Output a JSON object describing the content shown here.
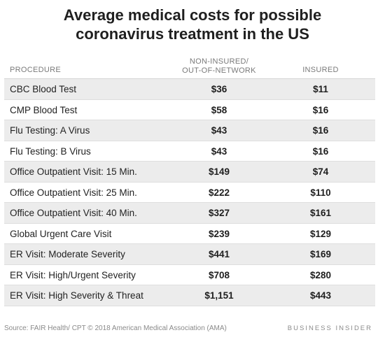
{
  "chart_data": {
    "type": "table",
    "title_lines": [
      "Average medical costs for possible",
      "coronavirus treatment in the US"
    ],
    "columns": {
      "procedure": "PROCEDURE",
      "non_insured_lines": [
        "NON-INSURED/",
        "OUT-OF-NETWORK"
      ],
      "insured": "INSURED"
    },
    "rows": [
      {
        "procedure": "CBC Blood Test",
        "non_insured": "$36",
        "insured": "$11"
      },
      {
        "procedure": "CMP Blood Test",
        "non_insured": "$58",
        "insured": "$16"
      },
      {
        "procedure": "Flu Testing: A Virus",
        "non_insured": "$43",
        "insured": "$16"
      },
      {
        "procedure": "Flu Testing: B Virus",
        "non_insured": "$43",
        "insured": "$16"
      },
      {
        "procedure": "Office Outpatient Visit: 15 Min.",
        "non_insured": "$149",
        "insured": "$74"
      },
      {
        "procedure": "Office Outpatient Visit: 25 Min.",
        "non_insured": "$222",
        "insured": "$110"
      },
      {
        "procedure": "Office Outpatient Visit: 40 Min.",
        "non_insured": "$327",
        "insured": "$161"
      },
      {
        "procedure": "Global Urgent Care Visit",
        "non_insured": "$239",
        "insured": "$129"
      },
      {
        "procedure": "ER Visit: Moderate Severity",
        "non_insured": "$441",
        "insured": "$169"
      },
      {
        "procedure": "ER Visit: High/Urgent Severity",
        "non_insured": "$708",
        "insured": "$280"
      },
      {
        "procedure": "ER Visit: High Severity & Threat",
        "non_insured": "$1,151",
        "insured": "$443"
      }
    ],
    "source": "Source: FAIR Health/ CPT © 2018 American Medical Association (AMA)",
    "brand": "BUSINESS INSIDER"
  }
}
